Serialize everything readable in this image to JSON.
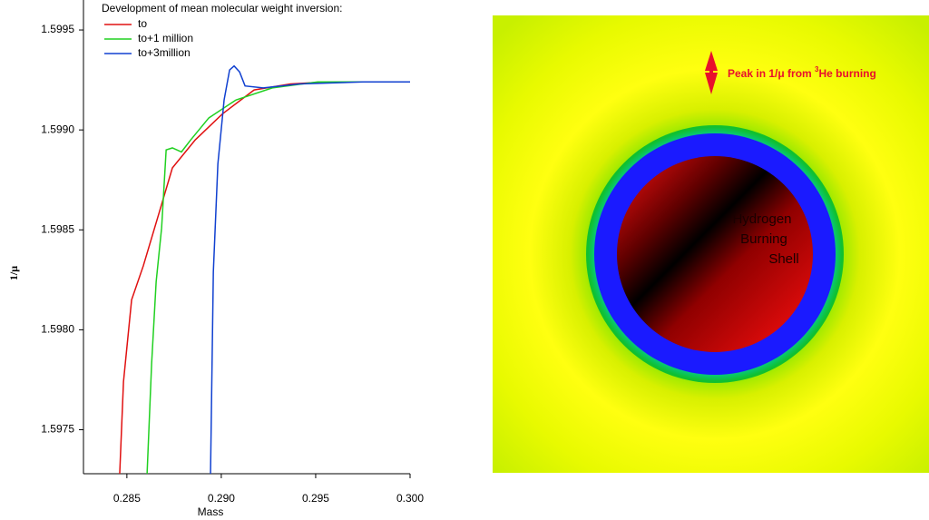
{
  "chart_data": {
    "type": "line",
    "title": "Development of mean molecular weight inversion:",
    "x_label": "Mass",
    "y_label": "1/μ",
    "xlim": [
      0.2827,
      0.3
    ],
    "ylim": [
      1.59728,
      1.59965
    ],
    "xticks": [
      0.285,
      {
        "value": 0.29,
        "label": "0.290"
      },
      0.295,
      {
        "value": 0.3,
        "label": "0.300"
      }
    ],
    "yticks": [
      1.5975,
      {
        "value": 1.598,
        "label": "1.5980"
      },
      1.5985,
      {
        "value": 1.599,
        "label": "1.5990"
      },
      1.5995
    ],
    "series": [
      {
        "name": "to",
        "color": "#e01010",
        "x": [
          0.28462,
          0.28482,
          0.28525,
          0.28587,
          0.28669,
          0.28741,
          0.28862,
          0.29006,
          0.29174,
          0.29367,
          0.29559,
          0.3
        ],
        "values": [
          1.59728,
          1.59774,
          1.59815,
          1.59832,
          1.59858,
          1.59881,
          1.59895,
          1.59908,
          1.5992,
          1.59923,
          1.59924,
          1.59924
        ]
      },
      {
        "name": "to+1 million",
        "color": "#20d020",
        "x": [
          0.28607,
          0.28631,
          0.28655,
          0.28684,
          0.28708,
          0.28741,
          0.28789,
          0.28838,
          0.28934,
          0.29078,
          0.2927,
          0.29511,
          0.29847
        ],
        "values": [
          1.59728,
          1.59783,
          1.59824,
          1.59851,
          1.5989,
          1.59891,
          1.59889,
          1.59895,
          1.59906,
          1.59915,
          1.59921,
          1.59924,
          1.59924
        ]
      },
      {
        "name": "to+3million",
        "color": "#1040d0",
        "x": [
          0.28943,
          0.28958,
          0.28982,
          0.29015,
          0.29044,
          0.29068,
          0.29097,
          0.29126,
          0.29222,
          0.29415,
          0.29752,
          0.3
        ],
        "values": [
          1.59728,
          1.59829,
          1.59883,
          1.59915,
          1.5993,
          1.59932,
          1.59929,
          1.59922,
          1.59921,
          1.59923,
          1.59924,
          1.59924
        ]
      }
    ]
  },
  "diagram": {
    "shell_label": [
      "Hydrogen",
      "Burning",
      "Shell"
    ],
    "annotation": {
      "text": "Peak in 1/μ from ",
      "superscript": "3",
      "rest": "He burning"
    }
  }
}
